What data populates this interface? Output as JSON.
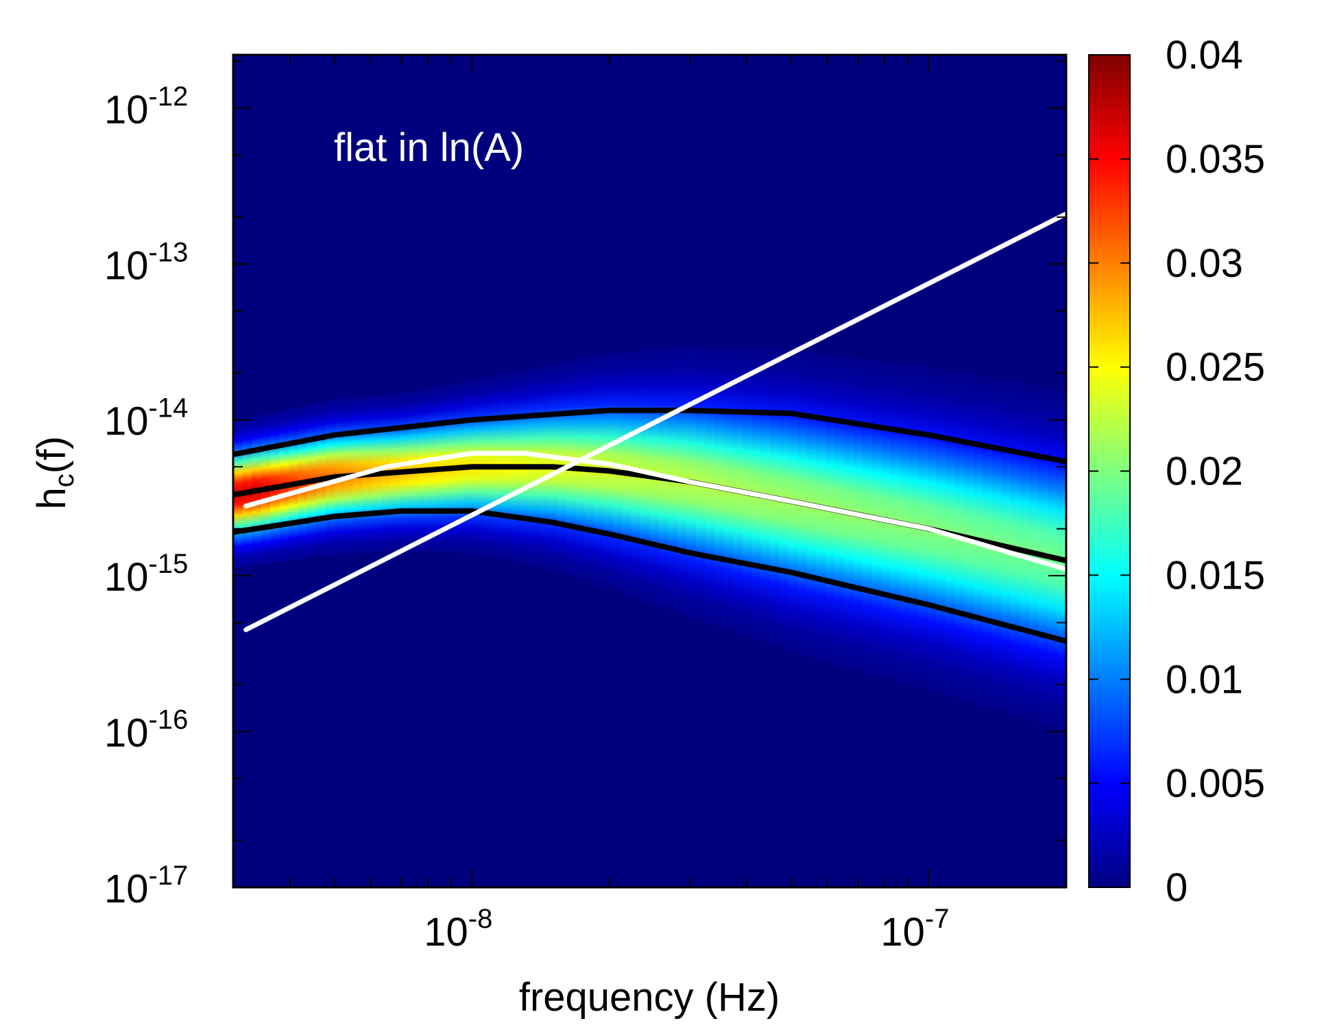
{
  "chart_data": {
    "type": "heatmap",
    "annotation": "flat in ln(A)",
    "xlabel": "frequency (Hz)",
    "ylabel": "h",
    "ylabel_sub": "c",
    "ylabel_tail": "(f)",
    "x_scale": "log",
    "y_scale": "log",
    "xlim": [
      3e-09,
      2e-07
    ],
    "ylim": [
      1e-17,
      2.2e-12
    ],
    "x_ticks": [
      {
        "value": 1e-08,
        "base": "10",
        "exp": "-8"
      },
      {
        "value": 1e-07,
        "base": "10",
        "exp": "-7"
      }
    ],
    "y_ticks": [
      {
        "value": 1e-17,
        "base": "10",
        "exp": "-17"
      },
      {
        "value": 1e-16,
        "base": "10",
        "exp": "-16"
      },
      {
        "value": 1e-15,
        "base": "10",
        "exp": "-15"
      },
      {
        "value": 1e-14,
        "base": "10",
        "exp": "-14"
      },
      {
        "value": 1e-13,
        "base": "10",
        "exp": "-13"
      },
      {
        "value": 1e-12,
        "base": "10",
        "exp": "-12"
      }
    ],
    "colorbar": {
      "range": [
        0,
        0.04
      ],
      "tick_values": [
        0,
        0.005,
        0.01,
        0.015,
        0.02,
        0.025,
        0.03,
        0.035,
        0.04
      ],
      "tick_labels": [
        "0",
        "0.005",
        "0.01",
        "0.015",
        "0.02",
        "0.025",
        "0.03",
        "0.035",
        "0.04"
      ],
      "colormap": [
        "#00007f",
        "#0000ff",
        "#007fff",
        "#00ffff",
        "#7fff7f",
        "#ffff00",
        "#ff7f00",
        "#ff0000",
        "#7f0000"
      ]
    },
    "series": [
      {
        "name": "upper bound",
        "color": "#000000",
        "x": [
          3e-09,
          5e-09,
          1e-08,
          2e-08,
          3e-08,
          5e-08,
          1e-07,
          2e-07
        ],
        "y": [
          6e-15,
          8e-15,
          1e-14,
          1.15e-14,
          1.15e-14,
          1.1e-14,
          8e-15,
          5.4e-15
        ]
      },
      {
        "name": "median",
        "color": "#000000",
        "x": [
          3e-09,
          5e-09,
          1e-08,
          1.5e-08,
          2e-08,
          3e-08,
          5e-08,
          1e-07,
          2e-07
        ],
        "y": [
          3.3e-15,
          4.3e-15,
          5e-15,
          5e-15,
          4.7e-15,
          4e-15,
          3e-15,
          2e-15,
          1.25e-15
        ]
      },
      {
        "name": "lower bound",
        "color": "#000000",
        "x": [
          3e-09,
          5e-09,
          7e-09,
          1e-08,
          1.5e-08,
          2e-08,
          3e-08,
          5e-08,
          1e-07,
          2e-07
        ],
        "y": [
          1.9e-15,
          2.4e-15,
          2.6e-15,
          2.6e-15,
          2.2e-15,
          1.85e-15,
          1.4e-15,
          1.05e-15,
          6.5e-16,
          3.8e-16
        ]
      },
      {
        "name": "white curve",
        "color": "#ffffff",
        "x": [
          3.2e-09,
          6.5e-09,
          1e-08,
          1.3e-08,
          2e-08,
          3e-08,
          5e-08,
          1e-07,
          2e-07
        ],
        "y": [
          2.8e-15,
          5e-15,
          6.1e-15,
          6.1e-15,
          5.2e-15,
          4e-15,
          3e-15,
          2e-15,
          1.1e-15
        ]
      },
      {
        "name": "white straight line",
        "color": "#ffffff",
        "x": [
          3.2e-09,
          2e-07
        ],
        "y": [
          4.5e-16,
          2.1e-13
        ]
      }
    ]
  }
}
